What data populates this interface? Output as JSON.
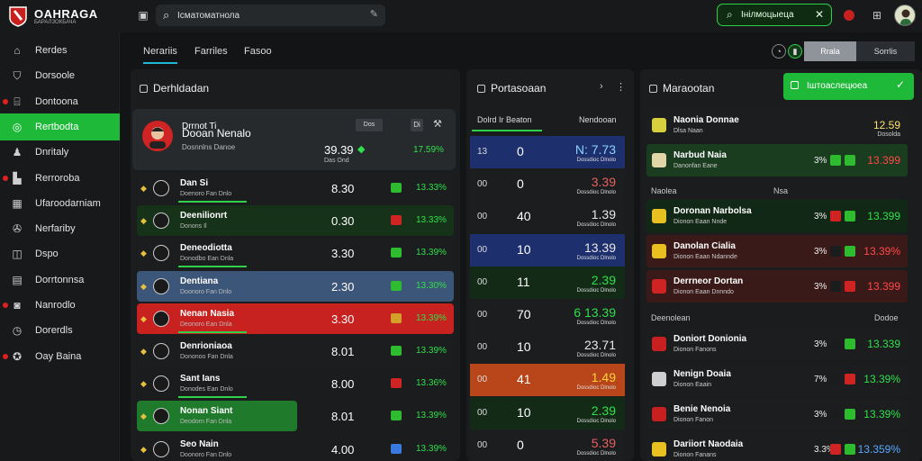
{
  "header": {
    "brand": "OAHRAGA",
    "brand_sub": "БАРАЛЗОКБАЧА",
    "search_value": "Ісматоматнола",
    "green_search_value": "Інілмоцыеца"
  },
  "sidebar": {
    "items": [
      {
        "label": "Rerdes",
        "icon": "home-icon",
        "dot": false
      },
      {
        "label": "Dorsoole",
        "icon": "shield-icon",
        "dot": false
      },
      {
        "label": "Dontoona",
        "icon": "chart-icon",
        "dot": true
      },
      {
        "label": "Rertbodta",
        "icon": "football-icon",
        "dot": false,
        "active": true
      },
      {
        "label": "Dnritaly",
        "icon": "user-icon",
        "dot": false
      },
      {
        "label": "Rerroroba",
        "icon": "building-icon",
        "dot": true
      },
      {
        "label": "Ufaroodarniam",
        "icon": "grid-icon",
        "dot": false
      },
      {
        "label": "Nerfariby",
        "icon": "wrench-icon",
        "dot": false
      },
      {
        "label": "Dspo",
        "icon": "gamepad-icon",
        "dot": false
      },
      {
        "label": "Dorrtonnsa",
        "icon": "ticket-icon",
        "dot": false
      },
      {
        "label": "Nanrodlo",
        "icon": "bell-icon",
        "dot": true
      },
      {
        "label": "Dorerdls",
        "icon": "clock-icon",
        "dot": false
      },
      {
        "label": "Oay Baina",
        "icon": "star-icon",
        "dot": true
      }
    ]
  },
  "tabs": [
    {
      "label": "Nerariis"
    },
    {
      "label": "Farriles"
    },
    {
      "label": "Fasoo"
    }
  ],
  "segments": {
    "a": "Rrala",
    "b": "Sorrlis"
  },
  "left_panel": {
    "title": "Derhldadan",
    "featured": {
      "name": "Drrnot Ti",
      "sub_name": "Dooan Nenalo",
      "sub": "Dosnnlns  Danoe",
      "score": "39.39",
      "score_sub": "Das  Ond",
      "pct": "17.59%",
      "btn_a": "Dos",
      "btn_b": "Di"
    },
    "rows": [
      {
        "name": "Dan Si",
        "sub": "Doenoro  Fan  Dnlo",
        "score": "8.30",
        "pct": "13.33%",
        "bg": "#1b1d1f",
        "badge": "#2fbb2f"
      },
      {
        "name": "Deenilionrt",
        "sub": "Donons  Il",
        "score": "0.30",
        "pct": "13.33%",
        "bg": "#163319",
        "badge": "#d02424"
      },
      {
        "name": "Deneodiotta",
        "sub": "Donodbo  Ean  Dnla",
        "score": "3.30",
        "pct": "13.39%",
        "bg": "#1b1d1f",
        "badge": "#2fbb2f"
      },
      {
        "name": "Dentiana",
        "sub": "Doonoro  Fan  Dnlo",
        "score": "2.30",
        "pct": "13.30%",
        "bg": "#3c5679",
        "badge": "#2fbb2f"
      },
      {
        "name": "Nenan Nasia",
        "sub": "Deonoro  Ean  Dnla",
        "score": "3.30",
        "pct": "13.39%",
        "bg": "#c7221f",
        "badge": "#d4a02a"
      },
      {
        "name": "Denrioniaoa",
        "sub": "Dononoo  Fan  Dnla",
        "score": "8.01",
        "pct": "13.39%",
        "bg": "#1b1d1f",
        "badge": "#2fbb2f"
      },
      {
        "name": "Sant Ians",
        "sub": "Donodes  Ean  Dnlo",
        "score": "8.00",
        "pct": "13.36%",
        "bg": "#1a1c1e",
        "badge": "#d02424"
      },
      {
        "name": "Nonan Siant",
        "sub": "Deodorn  Fan  Dnla",
        "score": "8.01",
        "pct": "13.39%",
        "bg": "#1f7a2c",
        "badge": "#2fbb2f"
      },
      {
        "name": "Seo Nain",
        "sub": "Doonoro  Fan  Dnlo",
        "score": "4.00",
        "pct": "13.39%",
        "bg": "#1a1c1e",
        "badge": "#3a7ae0"
      }
    ]
  },
  "middle_panel": {
    "title": "Portasoaan",
    "head_a": "Dolrd  Ir Beaton",
    "head_b": "Nendooan",
    "rows": [
      {
        "a": "13",
        "b": "0",
        "c": "N: 7.73",
        "d": "Dossdioc  Dlnolo",
        "bg": "#1e2f6e",
        "c_color": "#8cd4ff"
      },
      {
        "a": "00",
        "b": "0",
        "c": "3.39",
        "d": "Dossdioc  Dlnolo",
        "bg": "#1b1d1f",
        "c_color": "#e86060"
      },
      {
        "a": "00",
        "b": "40",
        "c": "1.39",
        "d": "Dossdioc  Dlnolo",
        "bg": "#1b1d1f",
        "c_color": "#e8e8e8"
      },
      {
        "a": "00",
        "b": "10",
        "c": "13.39",
        "d": "Dossdioc  Dlnolo",
        "bg": "#1e2f6e",
        "c_color": "#e8e8e8"
      },
      {
        "a": "00",
        "b": "11",
        "c": "2.39",
        "d": "Dossdioc  Dlnolo",
        "bg": "#122a16",
        "c_color": "#2fe04a"
      },
      {
        "a": "00",
        "b": "70",
        "c": "6 13.39",
        "d": "Dossdioc  Dlnolo",
        "bg": "#1b1d1f",
        "c_color": "#2fe04a"
      },
      {
        "a": "00",
        "b": "10",
        "c": "23.71",
        "d": "Dossdioc  Dlnolo",
        "bg": "#1b1d1f",
        "c_color": "#e8e8e8"
      },
      {
        "a": "00",
        "b": "41",
        "c": "1.49",
        "d": "Dossdioc  Dlnolo",
        "bg": "#b8461a",
        "c_color": "#ffd23a"
      },
      {
        "a": "00",
        "b": "10",
        "c": "2.39",
        "d": "Dossdioc  Dlnolo",
        "bg": "#122a16",
        "c_color": "#2fe04a"
      },
      {
        "a": "00",
        "b": "0",
        "c": "5.39",
        "d": "Dossdioc  Dlnolo",
        "bg": "#1b1d1f",
        "c_color": "#e86060"
      }
    ]
  },
  "right_panel": {
    "title": "Maraootan",
    "green_btn": "Іштоаслецюеа",
    "rows_top": [
      {
        "name": "Naonia Donnae",
        "sub": "Dlsa  Naan",
        "pc": "",
        "val": "12.59",
        "val_sub": "Dosolda",
        "bg": "#1b1d1f",
        "val_color": "#ffe16a",
        "logo": "#d8cf3e"
      },
      {
        "name": "Narbud Naia",
        "sub": "Danonfan  Eane",
        "pc": "3%",
        "val": "13.399",
        "bg": "#1a3c1f",
        "val_color": "#ff4848",
        "logo": "#e0d6a8",
        "b1": "#2fbb2f",
        "b2": "#2fbb2f"
      }
    ],
    "label_a": "Naolea",
    "label_b": "Nsa",
    "rows_mid": [
      {
        "name": "Doronan Narbolsa",
        "sub": "Dionon  Eaan  Nnde",
        "pc": "3%",
        "val": "13.399",
        "bg": "#122816",
        "val_color": "#2fe04a",
        "logo": "#e8c020",
        "b1": "#d02424",
        "b2": "#2fbb2f"
      },
      {
        "name": "Danolan Cialia",
        "sub": "Dionon  Eaan  Ndannde",
        "pc": "3%",
        "val": "13.39%",
        "bg": "#3a1a18",
        "val_color": "#ff4848",
        "logo": "#e8c020",
        "b1": "#1a1c1e",
        "b2": "#2fbb2f"
      },
      {
        "name": "Derrneor Dortan",
        "sub": "Dionon  Eaan  Dnnndo",
        "pc": "3%",
        "val": "13.399",
        "bg": "#3a1a18",
        "val_color": "#ff4848",
        "logo": "#d02424",
        "b1": "#1a1c1e",
        "b2": "#d02424"
      }
    ],
    "label_c": "Deenolean",
    "label_d": "Dodoe",
    "rows_bot": [
      {
        "name": "Doniort Donionia",
        "sub": "Dionon  Fanons",
        "pc": "3%",
        "val": "13.339",
        "bg": "#1b1d1f",
        "val_color": "#2fe04a",
        "logo": "#c82020",
        "b1": "#1a1c1e",
        "b2": "#2fbb2f"
      },
      {
        "name": "Nenign Doaia",
        "sub": "Dionon  Eaain",
        "pc": "7%",
        "val": "13.39%",
        "bg": "#1b1d1f",
        "val_color": "#2fe04a",
        "logo": "#cfcfcf",
        "b1": "#1a1c1e",
        "b2": "#d02424"
      },
      {
        "name": "Benie Nenoia",
        "sub": "Dionon  Fanon",
        "pc": "3%",
        "val": "13.39%",
        "bg": "#1b1d1f",
        "val_color": "#2fe04a",
        "logo": "#c82020",
        "b1": "#1a1c1e",
        "b2": "#2fbb2f"
      },
      {
        "name": "Dariiort Naodaia",
        "sub": "Dionon  Fanans",
        "pc": "3.3%",
        "val": "13.359%",
        "bg": "#1b1d1f",
        "val_color": "#5aa8ff",
        "logo": "#e8c020",
        "b1": "#d02424",
        "b2": "#2fbb2f"
      }
    ]
  },
  "colors": {
    "accent_green": "#1fb93a",
    "danger_red": "#d02424",
    "info_blue": "#1e2f6e"
  }
}
